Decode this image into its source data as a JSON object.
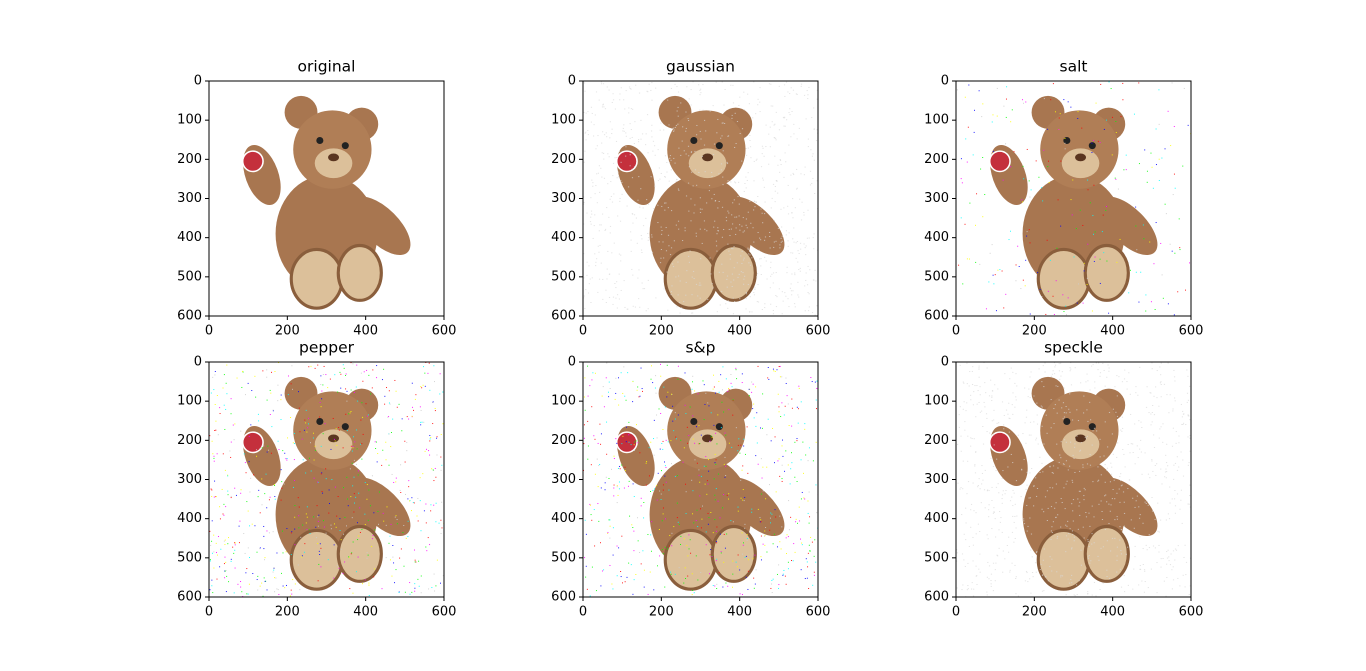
{
  "chart_data": [
    {
      "type": "image",
      "title": "original",
      "xlim": [
        0,
        600
      ],
      "ylim": [
        600,
        0
      ],
      "xticks": [
        0,
        200,
        400,
        600
      ],
      "yticks": [
        0,
        100,
        200,
        300,
        400,
        500,
        600
      ]
    },
    {
      "type": "image",
      "title": "gaussian",
      "xlim": [
        0,
        600
      ],
      "ylim": [
        600,
        0
      ],
      "xticks": [
        0,
        200,
        400,
        600
      ],
      "yticks": [
        0,
        100,
        200,
        300,
        400,
        500,
        600
      ]
    },
    {
      "type": "image",
      "title": "salt",
      "xlim": [
        0,
        600
      ],
      "ylim": [
        600,
        0
      ],
      "xticks": [
        0,
        200,
        400,
        600
      ],
      "yticks": [
        0,
        100,
        200,
        300,
        400,
        500,
        600
      ]
    },
    {
      "type": "image",
      "title": "pepper",
      "xlim": [
        0,
        600
      ],
      "ylim": [
        600,
        0
      ],
      "xticks": [
        0,
        200,
        400,
        600
      ],
      "yticks": [
        0,
        100,
        200,
        300,
        400,
        500,
        600
      ]
    },
    {
      "type": "image",
      "title": "s&p",
      "xlim": [
        0,
        600
      ],
      "ylim": [
        600,
        0
      ],
      "xticks": [
        0,
        200,
        400,
        600
      ],
      "yticks": [
        0,
        100,
        200,
        300,
        400,
        500,
        600
      ]
    },
    {
      "type": "image",
      "title": "speckle",
      "xlim": [
        0,
        600
      ],
      "ylim": [
        600,
        0
      ],
      "xticks": [
        0,
        200,
        400,
        600
      ],
      "yticks": [
        0,
        100,
        200,
        300,
        400,
        500,
        600
      ]
    }
  ]
}
